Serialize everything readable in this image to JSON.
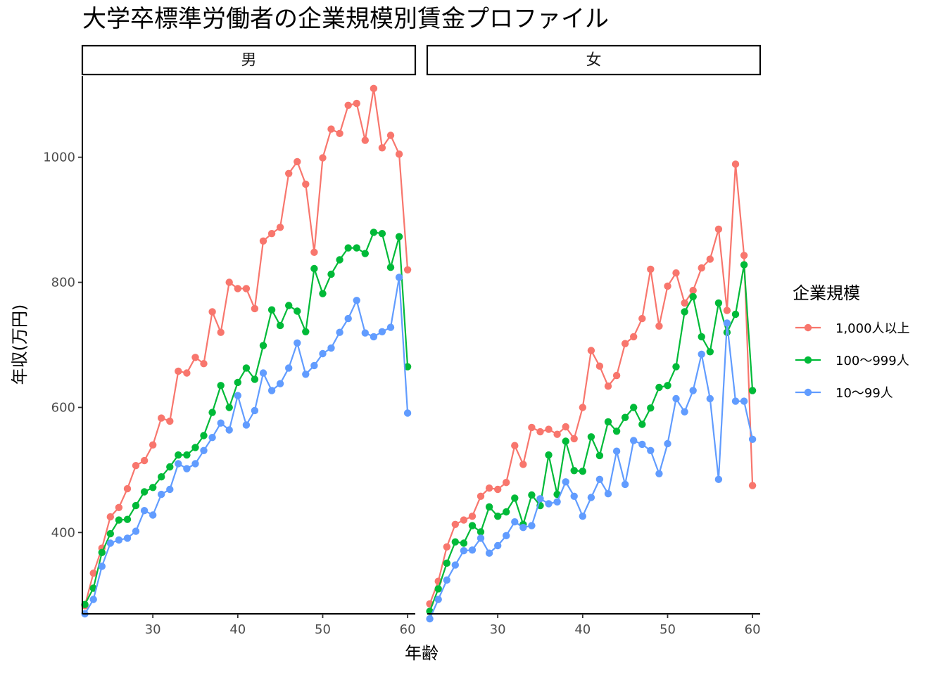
{
  "chart_data": {
    "type": "line",
    "title": "大学卒標準労働者の企業規模別賃金プロファイル",
    "xlabel": "年齢",
    "ylabel": "年収(万円)",
    "xlim": [
      21.7,
      60.9
    ],
    "ylim": [
      270,
      1130
    ],
    "x_ticks": [
      30,
      40,
      50,
      60
    ],
    "y_ticks": [
      400,
      600,
      800,
      1000
    ],
    "legend": {
      "title": "企業規模",
      "position": "right",
      "entries": [
        "1,000人以上",
        "100～999人",
        "10～99人"
      ]
    },
    "colors": {
      "1,000人以上": "#F8766D",
      "100～999人": "#00BA38",
      "10～99人": "#619CFF"
    },
    "x": [
      22,
      23,
      24,
      25,
      26,
      27,
      28,
      29,
      30,
      31,
      32,
      33,
      34,
      35,
      36,
      37,
      38,
      39,
      40,
      41,
      42,
      43,
      44,
      45,
      46,
      47,
      48,
      49,
      50,
      51,
      52,
      53,
      54,
      55,
      56,
      57,
      58,
      59,
      60
    ],
    "panels": [
      {
        "strip": "男",
        "series": [
          {
            "name": "1,000人以上",
            "values": [
              283,
              335,
              375,
              425,
              440,
              470,
              507,
              515,
              540,
              583,
              578,
              658,
              655,
              680,
              670,
              753,
              720,
              800,
              790,
              790,
              758,
              866,
              878,
              888,
              974,
              993,
              957,
              848,
              999,
              1045,
              1038,
              1083,
              1086,
              1027,
              1110,
              1015,
              1035,
              1005,
              820
            ]
          },
          {
            "name": "100～999人",
            "values": [
              285,
              311,
              368,
              398,
              420,
              421,
              443,
              465,
              472,
              489,
              505,
              524,
              524,
              536,
              555,
              592,
              635,
              600,
              640,
              663,
              645,
              699,
              756,
              731,
              763,
              754,
              721,
              822,
              782,
              813,
              836,
              855,
              855,
              846,
              880,
              878,
              824,
              873,
              665
            ]
          },
          {
            "name": "10～99人",
            "values": [
              270,
              293,
              346,
              383,
              388,
              391,
              402,
              435,
              428,
              461,
              469,
              510,
              502,
              510,
              531,
              552,
              575,
              564,
              619,
              572,
              595,
              655,
              627,
              638,
              663,
              703,
              653,
              667,
              686,
              695,
              720,
              742,
              771,
              719,
              713,
              721,
              728,
              808,
              591
            ]
          }
        ]
      },
      {
        "strip": "女",
        "series": [
          {
            "name": "1,000人以上",
            "values": [
              286,
              322,
              377,
              413,
              420,
              426,
              458,
              471,
              469,
              480,
              539,
              509,
              568,
              561,
              565,
              557,
              569,
              550,
              600,
              691,
              666,
              634,
              651,
              702,
              713,
              742,
              821,
              730,
              794,
              815,
              767,
              787,
              823,
              837,
              885,
              755,
              989,
              843,
              475
            ]
          },
          {
            "name": "100～999人",
            "values": [
              274,
              310,
              351,
              385,
              383,
              411,
              401,
              441,
              426,
              433,
              455,
              413,
              460,
              443,
              524,
              461,
              546,
              499,
              498,
              553,
              523,
              577,
              562,
              584,
              600,
              573,
              599,
              632,
              635,
              665,
              753,
              777,
              713,
              689,
              767,
              720,
              749,
              828,
              627
            ]
          },
          {
            "name": "10～99人",
            "values": [
              262,
              293,
              324,
              348,
              371,
              372,
              391,
              367,
              379,
              395,
              417,
              408,
              411,
              454,
              446,
              449,
              481,
              458,
              426,
              456,
              485,
              462,
              530,
              477,
              547,
              541,
              531,
              494,
              542,
              614,
              593,
              627,
              685,
              614,
              485,
              735,
              610,
              610,
              549
            ]
          }
        ]
      }
    ]
  }
}
